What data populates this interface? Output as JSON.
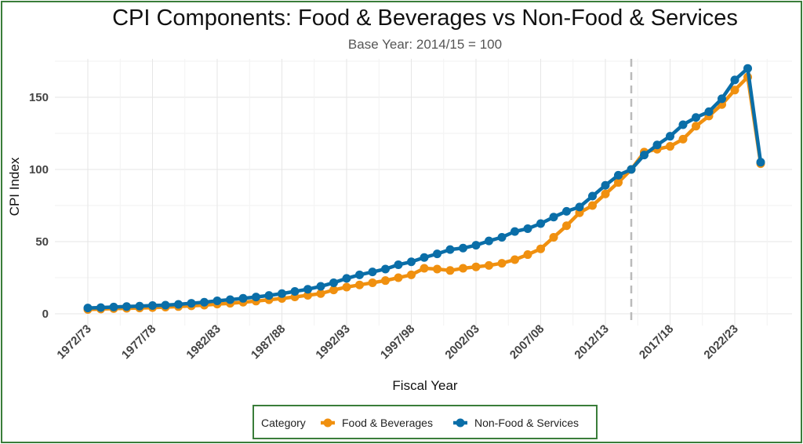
{
  "chart_data": {
    "type": "line",
    "title": "CPI Components: Food & Beverages vs Non-Food & Services",
    "subtitle": "Base Year: 2014/15 = 100",
    "xlabel": "Fiscal Year",
    "ylabel": "CPI Index",
    "ylim": [
      0,
      175
    ],
    "yticks": [
      "0",
      "50",
      "100",
      "150"
    ],
    "ytick_values": [
      0,
      50,
      100,
      150
    ],
    "xticks": [
      "1972/73",
      "1977/78",
      "1982/83",
      "1987/88",
      "1992/93",
      "1997/98",
      "2002/03",
      "2007/08",
      "2012/13",
      "2017/18",
      "2022/23"
    ],
    "x": [
      "1972/73",
      "1973/74",
      "1974/75",
      "1975/76",
      "1976/77",
      "1977/78",
      "1978/79",
      "1979/80",
      "1980/81",
      "1981/82",
      "1982/83",
      "1983/84",
      "1984/85",
      "1985/86",
      "1986/87",
      "1987/88",
      "1988/89",
      "1989/90",
      "1990/91",
      "1991/92",
      "1992/93",
      "1993/94",
      "1994/95",
      "1995/96",
      "1996/97",
      "1997/98",
      "1998/99",
      "1999/00",
      "2000/01",
      "2001/02",
      "2002/03",
      "2003/04",
      "2004/05",
      "2005/06",
      "2006/07",
      "2007/08",
      "2008/09",
      "2009/10",
      "2010/11",
      "2011/12",
      "2012/13",
      "2013/14",
      "2014/15",
      "2015/16",
      "2016/17",
      "2017/18",
      "2018/19",
      "2019/20",
      "2020/21",
      "2021/22",
      "2022/23",
      "2023/24",
      "2024/25"
    ],
    "reference_line": {
      "x": "2014/15",
      "style": "dashed"
    },
    "grid": true,
    "legend_position": "bottom",
    "legend_title": "Category",
    "series": [
      {
        "name": "Food & Beverages",
        "color": "#F0900F",
        "values": [
          3,
          3.3,
          3.6,
          3.8,
          4,
          4.3,
          4.6,
          5,
          5.5,
          6,
          6.7,
          7.3,
          8,
          8.8,
          9.7,
          10.6,
          11.7,
          12.8,
          14,
          16.5,
          18.5,
          20,
          21.5,
          23,
          25,
          27,
          31.5,
          31,
          30,
          31.5,
          32.5,
          33.5,
          35,
          37.5,
          41,
          45,
          53,
          61,
          70,
          75,
          83,
          91,
          100,
          112,
          114,
          116,
          121,
          130,
          137,
          145,
          155,
          164,
          104
        ]
      },
      {
        "name": "Non-Food & Services",
        "color": "#0A6EA8",
        "values": [
          4,
          4.3,
          4.7,
          5,
          5.3,
          5.7,
          6,
          6.5,
          7.3,
          8,
          9,
          9.8,
          10.7,
          11.6,
          12.7,
          14,
          15.5,
          17,
          19,
          21.5,
          24.5,
          27,
          29,
          31,
          34,
          36,
          39,
          41.5,
          44.5,
          45.5,
          47.5,
          50.5,
          53,
          57,
          59,
          62.5,
          67,
          71,
          74,
          81.5,
          89,
          96,
          100,
          110,
          117,
          123,
          131,
          136,
          140,
          149,
          162,
          170,
          105
        ]
      }
    ]
  }
}
